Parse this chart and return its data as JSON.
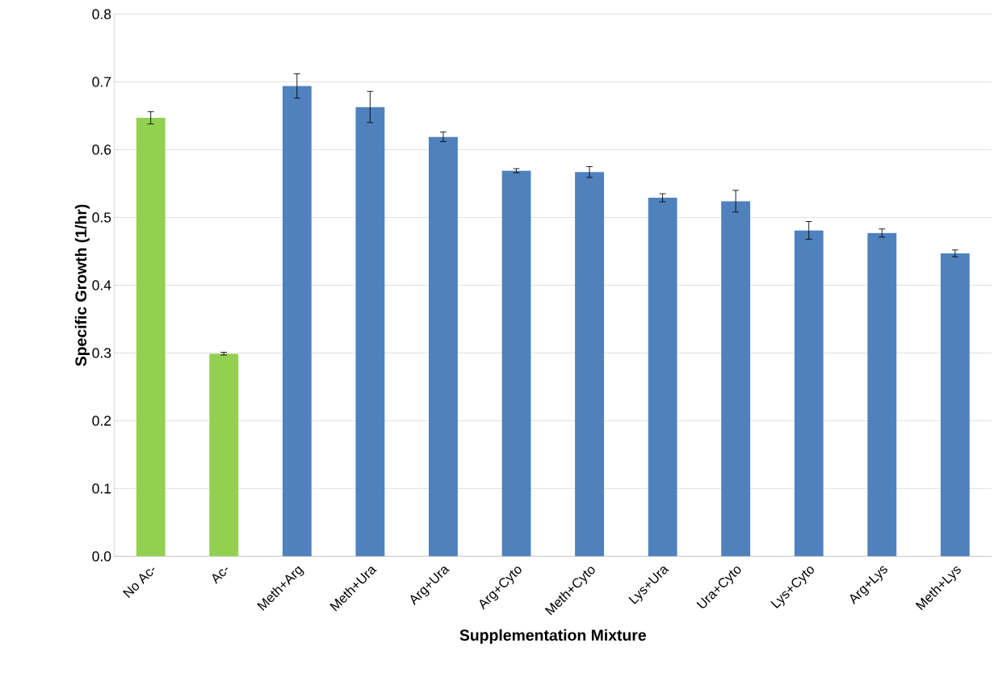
{
  "chart_data": {
    "type": "bar",
    "xlabel": "Supplementation  Mixture",
    "ylabel": "Specific Growth (1/hr)",
    "categories": [
      "No Ac-",
      "Ac-",
      "Meth+Arg",
      "Meth+Ura",
      "Arg+Ura",
      "Arg+Cyto",
      "Meth+Cyto",
      "Lys+Ura",
      "Ura+Cyto",
      "Lys+Cyto",
      "Arg+Lys",
      "Meth+Lys"
    ],
    "values": [
      0.647,
      0.299,
      0.694,
      0.663,
      0.619,
      0.569,
      0.567,
      0.529,
      0.524,
      0.481,
      0.477,
      0.447
    ],
    "errors": [
      0.009,
      0.002,
      0.018,
      0.023,
      0.007,
      0.003,
      0.008,
      0.006,
      0.016,
      0.013,
      0.006,
      0.005
    ],
    "colors": [
      "#92d050",
      "#92d050",
      "#4f81bd",
      "#4f81bd",
      "#4f81bd",
      "#4f81bd",
      "#4f81bd",
      "#4f81bd",
      "#4f81bd",
      "#4f81bd",
      "#4f81bd",
      "#4f81bd"
    ],
    "ylim": [
      0,
      0.8
    ],
    "yticks": [
      {
        "value": 0,
        "label": "0.0"
      },
      {
        "value": 0.1,
        "label": "0.1"
      },
      {
        "value": 0.2,
        "label": "0.2"
      },
      {
        "value": 0.3,
        "label": "0.3"
      },
      {
        "value": 0.4,
        "label": "0.4"
      },
      {
        "value": 0.5,
        "label": "0.5"
      },
      {
        "value": 0.6,
        "label": "0.6"
      },
      {
        "value": 0.7,
        "label": "0.7"
      },
      {
        "value": 0.8,
        "label": "0.8"
      }
    ],
    "grid": "y"
  }
}
